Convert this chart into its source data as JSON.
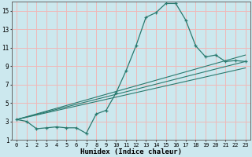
{
  "xlabel": "Humidex (Indice chaleur)",
  "bg_color": "#cce8ee",
  "grid_color": "#f0b8b8",
  "line_color": "#2a7a6f",
  "xlim": [
    -0.5,
    23.5
  ],
  "ylim": [
    1,
    16
  ],
  "yticks": [
    1,
    3,
    5,
    7,
    9,
    11,
    13,
    15
  ],
  "xticks": [
    0,
    1,
    2,
    3,
    4,
    5,
    6,
    7,
    8,
    9,
    10,
    11,
    12,
    13,
    14,
    15,
    16,
    17,
    18,
    19,
    20,
    21,
    22,
    23
  ],
  "main_x": [
    0,
    1,
    2,
    3,
    4,
    5,
    6,
    7,
    8,
    9,
    10,
    11,
    12,
    13,
    14,
    15,
    16,
    17,
    18,
    19,
    20,
    21,
    22,
    23
  ],
  "main_y": [
    3.2,
    3.0,
    2.2,
    2.3,
    2.4,
    2.3,
    2.3,
    1.7,
    3.8,
    4.2,
    6.1,
    8.5,
    11.2,
    14.3,
    14.8,
    15.8,
    15.8,
    14.0,
    11.2,
    10.0,
    10.2,
    9.5,
    9.6,
    9.5
  ],
  "line1_x": [
    0,
    23
  ],
  "line1_y": [
    3.2,
    10.2
  ],
  "line2_x": [
    0,
    23
  ],
  "line2_y": [
    3.2,
    9.5
  ],
  "line3_x": [
    0,
    23
  ],
  "line3_y": [
    3.2,
    8.8
  ]
}
